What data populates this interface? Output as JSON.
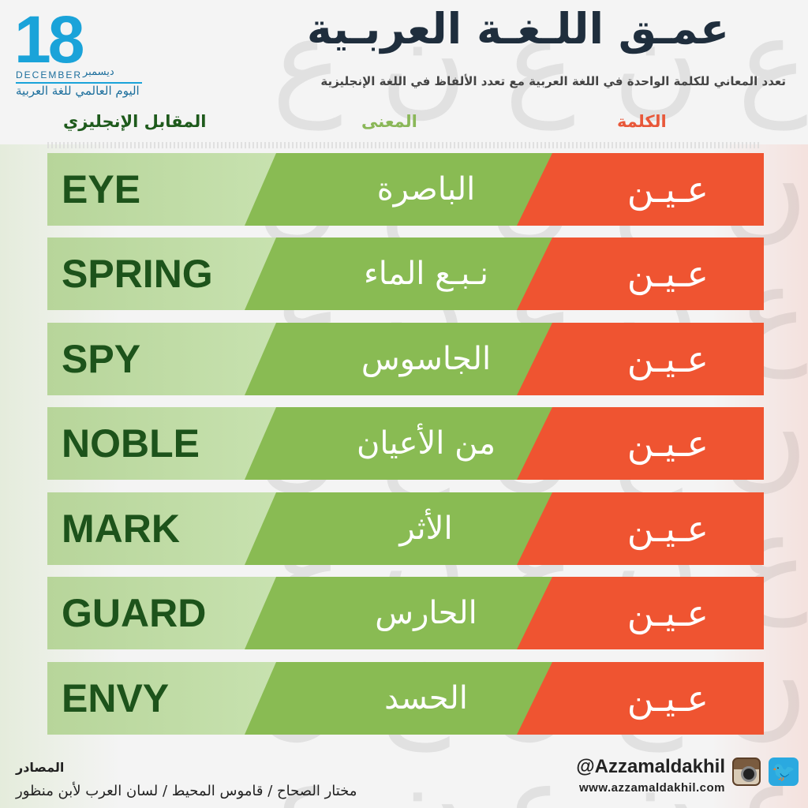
{
  "logo": {
    "number": "18",
    "month_en": "DECEMBER",
    "month_ar": "ديسمبر",
    "day_name_ar": "اليوم العالمي للغة العربية"
  },
  "header": {
    "title": "عمـق اللـغـة العربـية",
    "subtitle": "تعدد المعاني للكلمة الواحدة في اللغة العربية مع تعدد الألفاظ في اللغة الإنجليزية"
  },
  "columns": {
    "english": "المقابل الإنجليزي",
    "meaning": "المعنى",
    "word": "الكلمة"
  },
  "rows": [
    {
      "word": "عـيـن",
      "meaning": "الباصرة",
      "english": "EYE"
    },
    {
      "word": "عـيـن",
      "meaning": "نـبـع الماء",
      "english": "SPRING"
    },
    {
      "word": "عـيـن",
      "meaning": "الجاسوس",
      "english": "SPY"
    },
    {
      "word": "عـيـن",
      "meaning": "من الأعيان",
      "english": "NOBLE"
    },
    {
      "word": "عـيـن",
      "meaning": "الأثر",
      "english": "MARK"
    },
    {
      "word": "عـيـن",
      "meaning": "الحارس",
      "english": "GUARD"
    },
    {
      "word": "عـيـن",
      "meaning": "الحسد",
      "english": "ENVY"
    }
  ],
  "footer": {
    "sources_title": "المصادر",
    "sources": "مختار الصحاح  /  قاموس المحيط  /  لسان العرب لأبن منظور",
    "handle": "@Azzamaldakhil",
    "website": "www.azzamaldakhil.com"
  },
  "icons": {
    "instagram": "instagram-icon",
    "twitter": "twitter-icon"
  },
  "colors": {
    "word_red": "#ef5431",
    "meaning_green": "#89bb53",
    "english_light_green": "#c8e2b0",
    "english_text": "#1d531b"
  }
}
